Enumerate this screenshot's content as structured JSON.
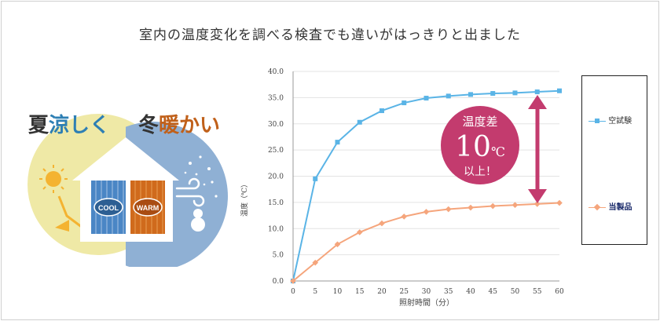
{
  "headline": "室内の温度変化を調べる検査でも違いがはっきりと出ました",
  "illustration": {
    "summer_black": "夏",
    "summer_colored": "涼しく",
    "winter_black": "冬",
    "winter_colored": "暖かい",
    "cool_label": "COOL",
    "warm_label": "WARM",
    "colors": {
      "summer_bg": "#efe9a6",
      "winter_bg": "#8fb0d4",
      "cool": "#4a86c5",
      "warm": "#d06a1c",
      "summer_text": "#2e7fb4",
      "winter_text": "#c0601a"
    }
  },
  "callout": {
    "line1": "温度差",
    "big": "10",
    "unit": "℃",
    "line3": "以上！",
    "color": "#c33b6e"
  },
  "chart_data": {
    "type": "line",
    "x": [
      0,
      5,
      10,
      15,
      20,
      25,
      30,
      35,
      40,
      45,
      50,
      55,
      60
    ],
    "xlabel": "照射時間（分）",
    "ylabel": "温度（℃）",
    "ylim": [
      0,
      40
    ],
    "yticks": [
      "0.0",
      "5.0",
      "10.0",
      "15.0",
      "20.0",
      "25.0",
      "30.0",
      "35.0",
      "40.0"
    ],
    "xticks": [
      "0",
      "5",
      "10",
      "15",
      "20",
      "25",
      "30",
      "35",
      "40",
      "45",
      "50",
      "55",
      "60"
    ],
    "grid": true,
    "legend": "right",
    "series": [
      {
        "name": "空試験",
        "color": "#5ab4e6",
        "marker": "square",
        "values": [
          0,
          19.5,
          26.5,
          30.3,
          32.5,
          34.0,
          34.9,
          35.3,
          35.6,
          35.8,
          35.9,
          36.1,
          36.3
        ]
      },
      {
        "name": "当製品",
        "color": "#f5a57c",
        "marker": "diamond",
        "values": [
          0,
          3.5,
          7.0,
          9.3,
          11.0,
          12.3,
          13.2,
          13.7,
          14.0,
          14.3,
          14.5,
          14.7,
          14.9
        ]
      }
    ]
  }
}
